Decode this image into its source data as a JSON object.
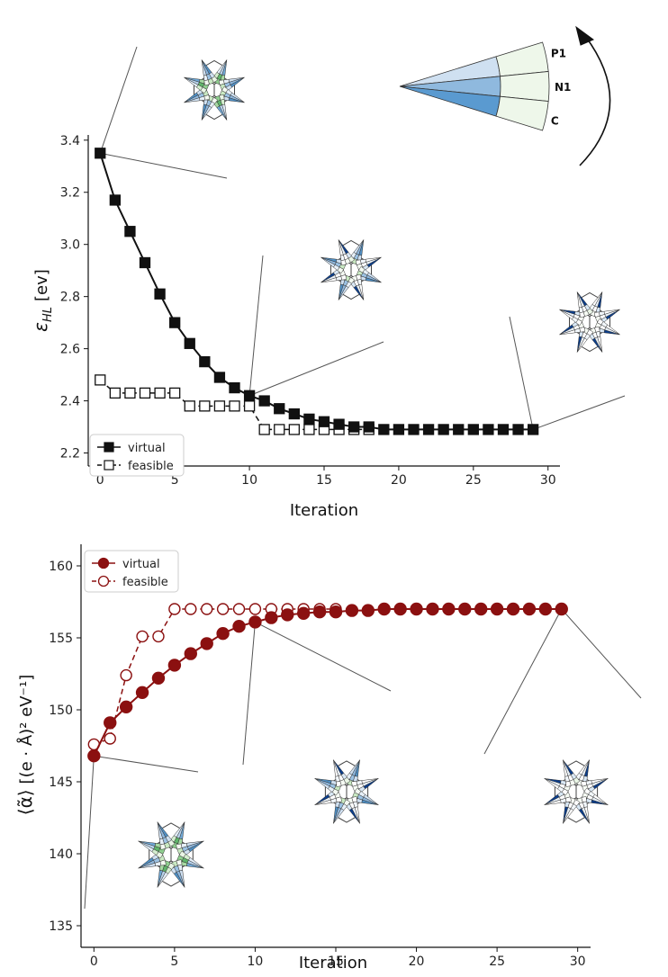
{
  "colors": {
    "black": "#111111",
    "dark_red": "#8b1010",
    "blue_dark": "#0b3d8a",
    "blue_mid": "#4f8fc4",
    "blue_light": "#cfe0f1",
    "green_dark": "#2e8b3e",
    "green_mid": "#8fcf8f",
    "green_light": "#eaf6e6",
    "box_stroke": "#444444"
  },
  "icons": [
    "molecule-glyph-icon",
    "arc-arrow-icon"
  ],
  "key": {
    "labels": [
      "P1",
      "N1",
      "C"
    ]
  },
  "chart_data": [
    {
      "type": "line",
      "xlabel": "Iteration",
      "ylabel": "ε_HL [ev]",
      "ylabel_main": "ε",
      "ylabel_sub": "HL",
      "ylabel_unit": "[ev]",
      "xlim": [
        -0.8,
        30.8
      ],
      "ylim": [
        2.15,
        3.42
      ],
      "xticks": [
        0,
        5,
        10,
        15,
        20,
        25,
        30
      ],
      "yticks": [
        2.2,
        2.4,
        2.6,
        2.8,
        3.0,
        3.2,
        3.4
      ],
      "ytick_labels": [
        "2.2",
        "2.4",
        "2.6",
        "2.8",
        "3.0",
        "3.2",
        "3.4"
      ],
      "grid": false,
      "legend_position": "lower-left",
      "series": [
        {
          "name": "virtual",
          "style": "solid",
          "marker": "filled-square",
          "x": [
            0,
            1,
            2,
            3,
            4,
            5,
            6,
            7,
            8,
            9,
            10,
            11,
            12,
            13,
            14,
            15,
            16,
            17,
            18,
            19,
            20,
            21,
            22,
            23,
            24,
            25,
            26,
            27,
            28,
            29
          ],
          "y": [
            3.35,
            3.17,
            3.05,
            2.93,
            2.81,
            2.7,
            2.62,
            2.55,
            2.49,
            2.45,
            2.42,
            2.4,
            2.37,
            2.35,
            2.33,
            2.32,
            2.31,
            2.3,
            2.3,
            2.29,
            2.29,
            2.29,
            2.29,
            2.29,
            2.29,
            2.29,
            2.29,
            2.29,
            2.29,
            2.29
          ]
        },
        {
          "name": "feasible",
          "style": "dashed",
          "marker": "open-square",
          "x": [
            0,
            1,
            2,
            3,
            4,
            5,
            6,
            7,
            8,
            9,
            10,
            11,
            12,
            13,
            14,
            15,
            16,
            17,
            18
          ],
          "y": [
            2.48,
            2.43,
            2.43,
            2.43,
            2.43,
            2.43,
            2.38,
            2.38,
            2.38,
            2.38,
            2.38,
            2.29,
            2.29,
            2.29,
            2.29,
            2.29,
            2.29,
            2.29,
            2.29
          ]
        }
      ]
    },
    {
      "type": "line",
      "xlabel": "Iteration",
      "ylabel": "⟨α̃⟩ [(e·Å)² eV⁻¹]",
      "ylabel_main": "⟨α̃⟩",
      "ylabel_unit": "[(e · Å)² eV⁻¹]",
      "xlim": [
        -0.8,
        30.8
      ],
      "ylim": [
        133.5,
        161.5
      ],
      "xticks": [
        0,
        5,
        10,
        15,
        20,
        25,
        30
      ],
      "yticks": [
        135,
        140,
        145,
        150,
        155,
        160
      ],
      "ytick_labels": [
        "135",
        "140",
        "145",
        "150",
        "155",
        "160"
      ],
      "grid": false,
      "legend_position": "upper-left",
      "series": [
        {
          "name": "virtual",
          "style": "solid",
          "marker": "filled-circle",
          "x": [
            0,
            1,
            2,
            3,
            4,
            5,
            6,
            7,
            8,
            9,
            10,
            11,
            12,
            13,
            14,
            15,
            16,
            17,
            18,
            19,
            20,
            21,
            22,
            23,
            24,
            25,
            26,
            27,
            28,
            29
          ],
          "y": [
            146.8,
            149.1,
            150.2,
            151.2,
            152.2,
            153.1,
            153.9,
            154.6,
            155.3,
            155.8,
            156.1,
            156.4,
            156.6,
            156.7,
            156.8,
            156.8,
            156.9,
            156.9,
            157.0,
            157.0,
            157.0,
            157.0,
            157.0,
            157.0,
            157.0,
            157.0,
            157.0,
            157.0,
            157.0,
            157.0
          ]
        },
        {
          "name": "feasible",
          "style": "dashed",
          "marker": "open-circle",
          "x": [
            0,
            1,
            2,
            3,
            4,
            5,
            6,
            7,
            8,
            9,
            10,
            11,
            12,
            13,
            14,
            15
          ],
          "y": [
            147.6,
            148.0,
            152.4,
            155.1,
            155.1,
            157.0,
            157.0,
            157.0,
            157.0,
            157.0,
            157.0,
            157.0,
            157.0,
            157.0,
            157.0,
            157.0
          ]
        }
      ]
    }
  ]
}
